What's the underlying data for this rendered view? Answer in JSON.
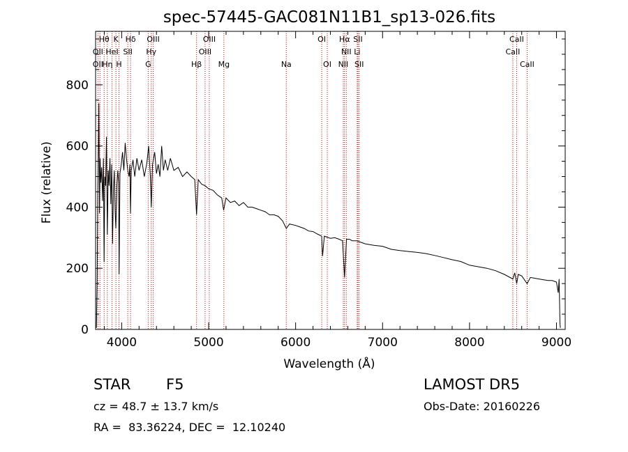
{
  "chart_data": {
    "type": "line",
    "title": "spec-57445-GAC081N11B1_sp13-026.fits",
    "xlabel": "Wavelength (Å)",
    "ylabel": "Flux (relative)",
    "xlim": [
      3700,
      9100
    ],
    "ylim": [
      0,
      975
    ],
    "xticks": [
      4000,
      5000,
      6000,
      7000,
      8000,
      9000
    ],
    "yticks": [
      0,
      200,
      400,
      600,
      800
    ],
    "grid": false,
    "line_color": "#000000",
    "marker_color": "#cc0000",
    "spectrum_points": [
      [
        3710,
        5
      ],
      [
        3718,
        150
      ],
      [
        3725,
        430
      ],
      [
        3732,
        600
      ],
      [
        3738,
        740
      ],
      [
        3745,
        380
      ],
      [
        3752,
        560
      ],
      [
        3760,
        480
      ],
      [
        3770,
        530
      ],
      [
        3780,
        420
      ],
      [
        3790,
        560
      ],
      [
        3798,
        220
      ],
      [
        3806,
        500
      ],
      [
        3815,
        470
      ],
      [
        3825,
        630
      ],
      [
        3835,
        310
      ],
      [
        3845,
        520
      ],
      [
        3855,
        470
      ],
      [
        3865,
        560
      ],
      [
        3875,
        410
      ],
      [
        3885,
        540
      ],
      [
        3895,
        280
      ],
      [
        3905,
        450
      ],
      [
        3915,
        520
      ],
      [
        3925,
        390
      ],
      [
        3933,
        330
      ],
      [
        3945,
        470
      ],
      [
        3955,
        520
      ],
      [
        3965,
        480
      ],
      [
        3970,
        180
      ],
      [
        3980,
        510
      ],
      [
        3995,
        540
      ],
      [
        4010,
        580
      ],
      [
        4025,
        520
      ],
      [
        4040,
        610
      ],
      [
        4055,
        560
      ],
      [
        4070,
        520
      ],
      [
        4085,
        500
      ],
      [
        4095,
        540
      ],
      [
        4101,
        380
      ],
      [
        4110,
        520
      ],
      [
        4130,
        555
      ],
      [
        4150,
        500
      ],
      [
        4175,
        560
      ],
      [
        4200,
        520
      ],
      [
        4230,
        555
      ],
      [
        4260,
        500
      ],
      [
        4290,
        545
      ],
      [
        4310,
        600
      ],
      [
        4330,
        500
      ],
      [
        4340,
        400
      ],
      [
        4355,
        540
      ],
      [
        4380,
        580
      ],
      [
        4400,
        510
      ],
      [
        4420,
        540
      ],
      [
        4440,
        500
      ],
      [
        4460,
        600
      ],
      [
        4480,
        520
      ],
      [
        4500,
        555
      ],
      [
        4530,
        520
      ],
      [
        4560,
        560
      ],
      [
        4600,
        520
      ],
      [
        4650,
        530
      ],
      [
        4700,
        500
      ],
      [
        4750,
        515
      ],
      [
        4800,
        500
      ],
      [
        4840,
        490
      ],
      [
        4861,
        375
      ],
      [
        4880,
        490
      ],
      [
        4920,
        475
      ],
      [
        4960,
        470
      ],
      [
        5000,
        460
      ],
      [
        5050,
        455
      ],
      [
        5100,
        440
      ],
      [
        5150,
        430
      ],
      [
        5172,
        390
      ],
      [
        5200,
        430
      ],
      [
        5250,
        415
      ],
      [
        5300,
        420
      ],
      [
        5350,
        405
      ],
      [
        5400,
        415
      ],
      [
        5450,
        400
      ],
      [
        5500,
        400
      ],
      [
        5550,
        395
      ],
      [
        5600,
        390
      ],
      [
        5650,
        385
      ],
      [
        5700,
        375
      ],
      [
        5750,
        375
      ],
      [
        5800,
        370
      ],
      [
        5850,
        355
      ],
      [
        5893,
        330
      ],
      [
        5930,
        345
      ],
      [
        6000,
        340
      ],
      [
        6050,
        335
      ],
      [
        6100,
        330
      ],
      [
        6150,
        322
      ],
      [
        6200,
        320
      ],
      [
        6250,
        312
      ],
      [
        6300,
        305
      ],
      [
        6310,
        240
      ],
      [
        6330,
        305
      ],
      [
        6400,
        298
      ],
      [
        6450,
        300
      ],
      [
        6500,
        295
      ],
      [
        6540,
        290
      ],
      [
        6563,
        170
      ],
      [
        6585,
        295
      ],
      [
        6620,
        295
      ],
      [
        6650,
        290
      ],
      [
        6700,
        290
      ],
      [
        6750,
        285
      ],
      [
        6800,
        280
      ],
      [
        6900,
        275
      ],
      [
        7000,
        272
      ],
      [
        7100,
        262
      ],
      [
        7200,
        258
      ],
      [
        7300,
        255
      ],
      [
        7400,
        252
      ],
      [
        7500,
        248
      ],
      [
        7600,
        242
      ],
      [
        7700,
        235
      ],
      [
        7800,
        228
      ],
      [
        7900,
        222
      ],
      [
        8000,
        210
      ],
      [
        8100,
        205
      ],
      [
        8200,
        200
      ],
      [
        8300,
        192
      ],
      [
        8400,
        180
      ],
      [
        8498,
        165
      ],
      [
        8520,
        185
      ],
      [
        8542,
        150
      ],
      [
        8560,
        180
      ],
      [
        8600,
        175
      ],
      [
        8662,
        150
      ],
      [
        8700,
        170
      ],
      [
        8800,
        165
      ],
      [
        8900,
        160
      ],
      [
        8950,
        160
      ],
      [
        9000,
        155
      ],
      [
        9020,
        120
      ],
      [
        9030,
        165
      ],
      [
        9040,
        20
      ],
      [
        9045,
        5
      ]
    ],
    "line_labels": [
      {
        "text": "Hθ",
        "x": 3798,
        "row": 0
      },
      {
        "text": "K",
        "x": 3934,
        "row": 0
      },
      {
        "text": "Hδ",
        "x": 4102,
        "row": 0
      },
      {
        "text": "OIII",
        "x": 4363,
        "row": 0
      },
      {
        "text": "OIII",
        "x": 5007,
        "row": 0
      },
      {
        "text": "OI",
        "x": 6300,
        "row": 0
      },
      {
        "text": "Hα",
        "x": 6563,
        "row": 0
      },
      {
        "text": "SII",
        "x": 6717,
        "row": 0
      },
      {
        "text": "CaII",
        "x": 8542,
        "row": 0
      },
      {
        "text": "OII",
        "x": 3727,
        "row": 1
      },
      {
        "text": "HeI",
        "x": 3889,
        "row": 1
      },
      {
        "text": "SII",
        "x": 4070,
        "row": 1
      },
      {
        "text": "Hγ",
        "x": 4340,
        "row": 1
      },
      {
        "text": "OIII",
        "x": 4959,
        "row": 1
      },
      {
        "text": "NII",
        "x": 6583,
        "row": 1
      },
      {
        "text": "Li",
        "x": 6708,
        "row": 1
      },
      {
        "text": "CaII",
        "x": 8498,
        "row": 1
      },
      {
        "text": "OII",
        "x": 3727,
        "row": 2
      },
      {
        "text": "Hη",
        "x": 3835,
        "row": 2
      },
      {
        "text": "H",
        "x": 3969,
        "row": 2
      },
      {
        "text": "G",
        "x": 4305,
        "row": 2
      },
      {
        "text": "Hβ",
        "x": 4861,
        "row": 2
      },
      {
        "text": "Mg",
        "x": 5175,
        "row": 2
      },
      {
        "text": "Na",
        "x": 5893,
        "row": 2
      },
      {
        "text": "OI",
        "x": 6364,
        "row": 2
      },
      {
        "text": "NII",
        "x": 6548,
        "row": 2
      },
      {
        "text": "SII",
        "x": 6731,
        "row": 2
      },
      {
        "text": "CaII",
        "x": 8662,
        "row": 2
      }
    ],
    "marker_lines": [
      3727,
      3750,
      3798,
      3835,
      3889,
      3934,
      3969,
      4070,
      4102,
      4305,
      4340,
      4363,
      4861,
      4959,
      5007,
      5175,
      5893,
      6300,
      6364,
      6548,
      6563,
      6583,
      6708,
      6717,
      6731,
      8498,
      8542,
      8662
    ]
  },
  "info": {
    "class": "STAR",
    "subclass": "F5",
    "survey": "LAMOST DR5",
    "cz": "cz = 48.7 ± 13.7 km/s",
    "obsdate": "Obs-Date: 20160226",
    "radec": "RA =  83.36224, DEC =  12.10240"
  }
}
